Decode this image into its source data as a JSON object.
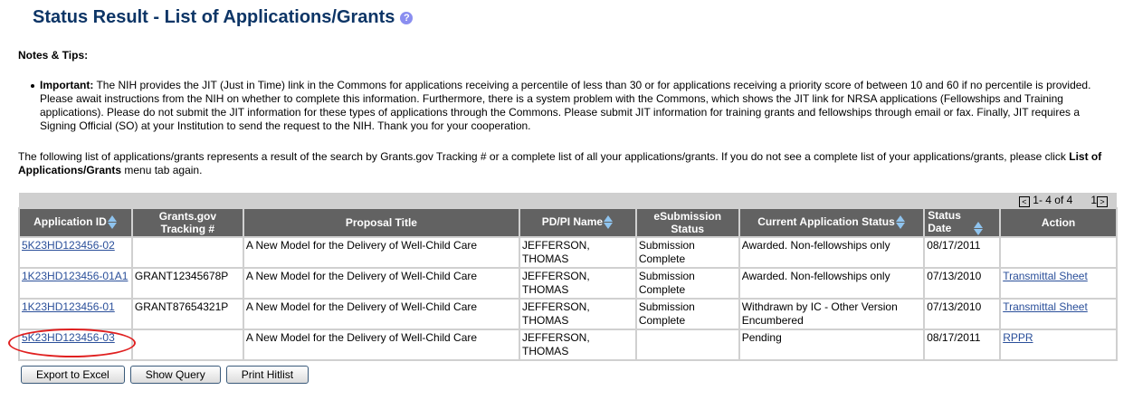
{
  "title": "Status Result - List of Applications/Grants",
  "help_icon": "?",
  "notes_heading": "Notes & Tips:",
  "tip_label": "Important:",
  "tip_text": " The NIH provides the JIT (Just in Time) link in the Commons for applications receiving a percentile of less than 30 or for applications receiving a priority score of between 10 and 60 if no percentile is provided.  Please await instructions from the NIH on whether to complete this information.  Furthermore, there is a system problem with the Commons, which shows the JIT link for NRSA applications (Fellowships and Training applications).  Please do not submit the JIT information for these types of applications through the Commons. Please submit JIT information for training grants and fellowships through email or fax.  Finally, JIT requires a Signing Official (SO) at your Institution to send the request to the NIH.    Thank you for your cooperation.",
  "intro_text": "The following list of applications/grants represents a result of the search by Grants.gov Tracking # or a complete list of all your applications/grants. If you do not see a complete list of your applications/grants, please click ",
  "intro_bold": "List of Applications/Grants",
  "intro_end": " menu tab again.",
  "pager": {
    "range": "1- 4 of 4",
    "page": "1"
  },
  "columns": [
    "Application ID",
    "Grants.gov Tracking #",
    "Proposal Title",
    "PD/PI Name",
    "eSubmission Status",
    "Current Application Status",
    "Status Date",
    "Action"
  ],
  "rows": [
    {
      "id": "5K23HD123456-02",
      "tracking": "",
      "title": "A New Model for the Delivery of Well-Child Care",
      "pi": "JEFFERSON, THOMAS",
      "esub": "Submission Complete",
      "status": "Awarded. Non-fellowships only",
      "date": "08/17/2011",
      "action": ""
    },
    {
      "id": "1K23HD123456-01A1",
      "tracking": "GRANT12345678P",
      "title": "A New Model for the Delivery of Well-Child Care",
      "pi": "JEFFERSON, THOMAS",
      "esub": "Submission Complete",
      "status": "Awarded. Non-fellowships only",
      "date": "07/13/2010",
      "action": "Transmittal Sheet"
    },
    {
      "id": "1K23HD123456-01",
      "tracking": "GRANT87654321P",
      "title": "A New Model for the Delivery of Well-Child Care",
      "pi": "JEFFERSON, THOMAS",
      "esub": "Submission Complete",
      "status": "Withdrawn by IC - Other Version Encumbered",
      "date": "07/13/2010",
      "action": "Transmittal Sheet"
    },
    {
      "id": "5K23HD123456-03",
      "tracking": "",
      "title": "A New Model for the Delivery of Well-Child Care",
      "pi": "JEFFERSON, THOMAS",
      "esub": "",
      "status": "Pending",
      "date": "08/17/2011",
      "action": "RPPR"
    }
  ],
  "buttons": {
    "export": "Export to Excel",
    "query": "Show Query",
    "print": "Print Hitlist"
  }
}
